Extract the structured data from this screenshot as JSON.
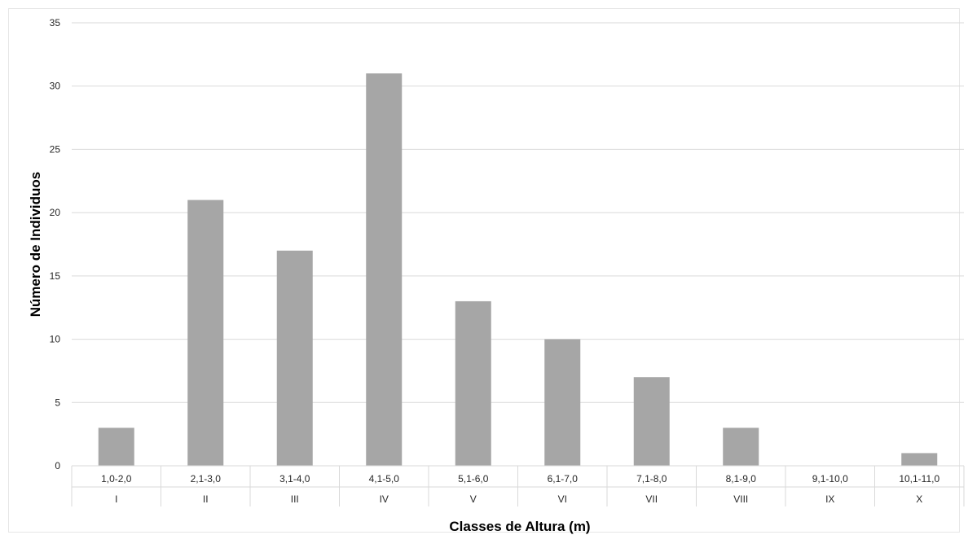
{
  "chart_data": {
    "type": "bar",
    "title": "",
    "xlabel": "Classes de Altura (m)",
    "ylabel": "Número de Individuos",
    "categories": [
      "1,0-2,0",
      "2,1-3,0",
      "3,1-4,0",
      "4,1-5,0",
      "5,1-6,0",
      "6,1-7,0",
      "7,1-8,0",
      "8,1-9,0",
      "9,1-10,0",
      "10,1-11,0"
    ],
    "category_groups": [
      "I",
      "II",
      "III",
      "IV",
      "V",
      "VI",
      "VII",
      "VIII",
      "IX",
      "X"
    ],
    "values": [
      3,
      21,
      17,
      31,
      13,
      10,
      7,
      3,
      0,
      1
    ],
    "ylim": [
      0,
      35
    ],
    "yticks": [
      "0",
      "5",
      "10",
      "15",
      "20",
      "25",
      "30",
      "35"
    ],
    "grid": true,
    "legend": "none",
    "bar_color": "#a6a6a6",
    "grid_color": "#d9d9d9",
    "text_color": "#262626"
  }
}
